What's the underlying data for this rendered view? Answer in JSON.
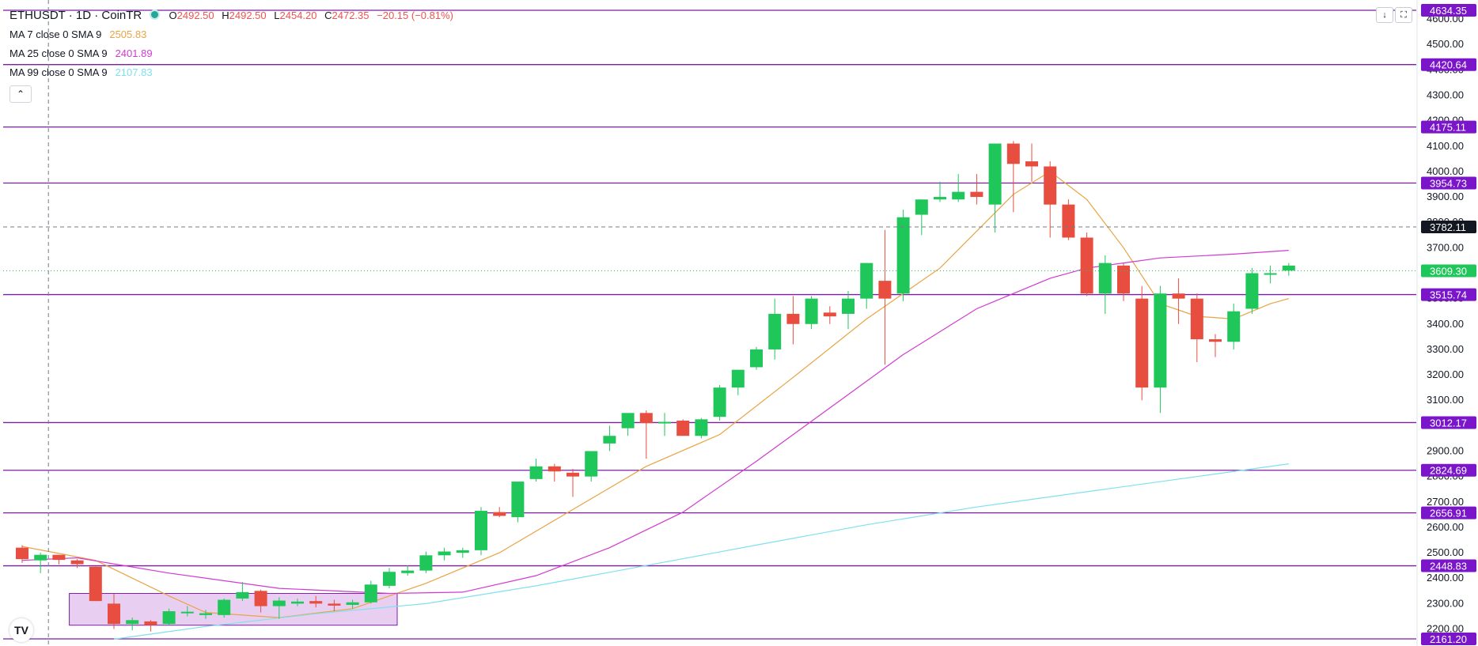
{
  "header": {
    "symbol": "ETHUSDT · 1D · CoinTR",
    "ohlc": {
      "o_label": "O",
      "o": "2492.50",
      "h_label": "H",
      "h": "2492.50",
      "l_label": "L",
      "l": "2454.20",
      "c_label": "C",
      "c": "2472.35",
      "change": "−20.15 (−0.81%)"
    },
    "indicators": [
      {
        "label": "MA 7 close 0 SMA 9",
        "value": "2505.83",
        "color": "#e8a444"
      },
      {
        "label": "MA 25 close 0 SMA 9",
        "value": "2401.89",
        "color": "#d13ad1"
      },
      {
        "label": "MA 99 close 0 SMA 9",
        "value": "2107.83",
        "color": "#7fe0ee"
      }
    ],
    "collapse_icon": "chevron-up-icon"
  },
  "toolbar": {
    "icons": [
      "arrow-down-icon",
      "fullscreen-icon"
    ]
  },
  "logo": {
    "icon": "tradingview-logo-icon",
    "text": "TV"
  },
  "colors": {
    "up": "#1fc75a",
    "down": "#e84e3f",
    "level": "#7b1fa2",
    "badge": "#7a15c9",
    "current": "#1fc75a",
    "crosshair": "#131722",
    "zone_fill": "#e4c7ef"
  },
  "chart_data": {
    "type": "candlestick",
    "ylim": [
      2140,
      4680
    ],
    "y_ticks": [
      "2200.00",
      "2300.00",
      "2400.00",
      "2500.00",
      "2600.00",
      "2700.00",
      "2800.00",
      "2900.00",
      "3000.00",
      "3100.00",
      "3200.00",
      "3300.00",
      "3400.00",
      "3500.00",
      "3600.00",
      "3700.00",
      "3800.00",
      "3900.00",
      "4000.00",
      "4100.00",
      "4200.00",
      "4300.00",
      "4400.00",
      "4500.00",
      "4600.00"
    ],
    "levels": [
      {
        "value": 4634.35,
        "label": "4634.35"
      },
      {
        "value": 4420.64,
        "label": "4420.64"
      },
      {
        "value": 4175.11,
        "label": "4175.11"
      },
      {
        "value": 3954.73,
        "label": "3954.73"
      },
      {
        "value": 3515.74,
        "label": "3515.74"
      },
      {
        "value": 3012.17,
        "label": "3012.17"
      },
      {
        "value": 2824.69,
        "label": "2824.69"
      },
      {
        "value": 2656.91,
        "label": "2656.91"
      },
      {
        "value": 2448.83,
        "label": "2448.83"
      },
      {
        "value": 2161.2,
        "label": "2161.20"
      }
    ],
    "crosshair": {
      "value": 3782.11,
      "label": "3782.11",
      "bar_index": 1
    },
    "current_price": {
      "value": 3609.3,
      "label": "3609.30"
    },
    "zone": {
      "from_index": 3,
      "to_index": 20,
      "top": 2340,
      "bottom": 2215
    },
    "candles": [
      [
        2520,
        2530,
        2460,
        2475
      ],
      [
        2470,
        2500,
        2420,
        2492
      ],
      [
        2492,
        2492,
        2454,
        2472
      ],
      [
        2470,
        2475,
        2440,
        2455
      ],
      [
        2445,
        2445,
        2310,
        2310
      ],
      [
        2300,
        2340,
        2200,
        2220
      ],
      [
        2220,
        2245,
        2195,
        2235
      ],
      [
        2230,
        2235,
        2190,
        2215
      ],
      [
        2220,
        2280,
        2215,
        2270
      ],
      [
        2265,
        2290,
        2250,
        2268
      ],
      [
        2255,
        2275,
        2240,
        2262
      ],
      [
        2255,
        2320,
        2245,
        2315
      ],
      [
        2320,
        2385,
        2310,
        2345
      ],
      [
        2350,
        2355,
        2265,
        2290
      ],
      [
        2290,
        2325,
        2240,
        2312
      ],
      [
        2300,
        2320,
        2290,
        2308
      ],
      [
        2310,
        2330,
        2285,
        2300
      ],
      [
        2300,
        2315,
        2270,
        2292
      ],
      [
        2295,
        2315,
        2280,
        2305
      ],
      [
        2305,
        2390,
        2300,
        2375
      ],
      [
        2370,
        2440,
        2360,
        2425
      ],
      [
        2420,
        2450,
        2410,
        2430
      ],
      [
        2430,
        2505,
        2420,
        2490
      ],
      [
        2490,
        2520,
        2470,
        2505
      ],
      [
        2500,
        2520,
        2480,
        2510
      ],
      [
        2510,
        2680,
        2490,
        2665
      ],
      [
        2660,
        2680,
        2640,
        2645
      ],
      [
        2640,
        2780,
        2620,
        2780
      ],
      [
        2790,
        2870,
        2780,
        2840
      ],
      [
        2840,
        2850,
        2780,
        2820
      ],
      [
        2815,
        2830,
        2720,
        2800
      ],
      [
        2800,
        2900,
        2780,
        2900
      ],
      [
        2930,
        3000,
        2900,
        2960
      ],
      [
        2990,
        3040,
        2960,
        3050
      ],
      [
        3050,
        3060,
        2870,
        3010
      ],
      [
        3010,
        3050,
        2960,
        3015
      ],
      [
        3020,
        3025,
        2960,
        2960
      ],
      [
        2960,
        3030,
        2950,
        3025
      ],
      [
        3035,
        3160,
        3020,
        3150
      ],
      [
        3150,
        3200,
        3120,
        3220
      ],
      [
        3230,
        3310,
        3220,
        3300
      ],
      [
        3300,
        3500,
        3260,
        3440
      ],
      [
        3440,
        3510,
        3320,
        3400
      ],
      [
        3400,
        3510,
        3380,
        3500
      ],
      [
        3445,
        3470,
        3400,
        3430
      ],
      [
        3440,
        3530,
        3380,
        3500
      ],
      [
        3500,
        3640,
        3460,
        3640
      ],
      [
        3570,
        3770,
        3240,
        3500
      ],
      [
        3520,
        3850,
        3490,
        3820
      ],
      [
        3830,
        3890,
        3750,
        3890
      ],
      [
        3890,
        3960,
        3880,
        3900
      ],
      [
        3890,
        3990,
        3880,
        3920
      ],
      [
        3920,
        3990,
        3870,
        3900
      ],
      [
        3870,
        4110,
        3760,
        4110
      ],
      [
        4110,
        4120,
        3840,
        4030
      ],
      [
        4040,
        4110,
        3960,
        4020
      ],
      [
        4020,
        4040,
        3740,
        3870
      ],
      [
        3870,
        3890,
        3730,
        3740
      ],
      [
        3740,
        3760,
        3510,
        3520
      ],
      [
        3520,
        3670,
        3440,
        3640
      ],
      [
        3630,
        3640,
        3490,
        3520
      ],
      [
        3500,
        3550,
        3100,
        3150
      ],
      [
        3150,
        3550,
        3050,
        3520
      ],
      [
        3520,
        3580,
        3400,
        3500
      ],
      [
        3500,
        3520,
        3250,
        3340
      ],
      [
        3340,
        3360,
        3270,
        3330
      ],
      [
        3330,
        3480,
        3300,
        3450
      ],
      [
        3460,
        3620,
        3440,
        3600
      ],
      [
        3600,
        3630,
        3560,
        3600
      ],
      [
        3610,
        3640,
        3590,
        3630
      ]
    ],
    "ma_series": [
      {
        "name": "MA 7",
        "color": "#e8a444",
        "points": [
          [
            0,
            2525
          ],
          [
            4,
            2470
          ],
          [
            8,
            2330
          ],
          [
            10,
            2265
          ],
          [
            14,
            2245
          ],
          [
            18,
            2280
          ],
          [
            22,
            2380
          ],
          [
            26,
            2500
          ],
          [
            30,
            2670
          ],
          [
            34,
            2840
          ],
          [
            38,
            2965
          ],
          [
            42,
            3190
          ],
          [
            46,
            3420
          ],
          [
            50,
            3620
          ],
          [
            54,
            3910
          ],
          [
            56,
            4000
          ],
          [
            58,
            3890
          ],
          [
            60,
            3700
          ],
          [
            62,
            3480
          ],
          [
            64,
            3430
          ],
          [
            66,
            3420
          ],
          [
            68,
            3480
          ],
          [
            69,
            3500
          ]
        ]
      },
      {
        "name": "MA 25",
        "color": "#d13ad1",
        "points": [
          [
            0,
            2470
          ],
          [
            3,
            2480
          ],
          [
            8,
            2420
          ],
          [
            14,
            2360
          ],
          [
            20,
            2340
          ],
          [
            24,
            2345
          ],
          [
            28,
            2410
          ],
          [
            32,
            2520
          ],
          [
            36,
            2660
          ],
          [
            40,
            2860
          ],
          [
            44,
            3070
          ],
          [
            48,
            3280
          ],
          [
            52,
            3460
          ],
          [
            56,
            3580
          ],
          [
            58,
            3620
          ],
          [
            60,
            3640
          ],
          [
            62,
            3660
          ],
          [
            66,
            3675
          ],
          [
            69,
            3690
          ]
        ]
      },
      {
        "name": "MA 99",
        "color": "#7fe0ee",
        "points": [
          [
            5,
            2160
          ],
          [
            10,
            2210
          ],
          [
            16,
            2260
          ],
          [
            22,
            2300
          ],
          [
            28,
            2370
          ],
          [
            34,
            2450
          ],
          [
            40,
            2530
          ],
          [
            46,
            2610
          ],
          [
            52,
            2680
          ],
          [
            58,
            2740
          ],
          [
            64,
            2800
          ],
          [
            69,
            2850
          ]
        ]
      }
    ]
  }
}
